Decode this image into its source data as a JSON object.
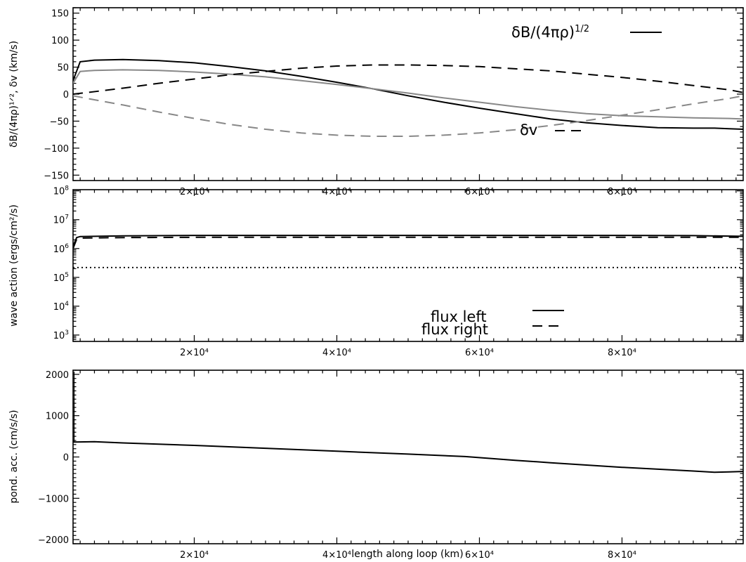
{
  "figure": {
    "xlabel": "length along loop (km)"
  },
  "chart_data": [
    {
      "type": "line",
      "ylabel": "δB/(4πρ)¹ᐟ², δv (km/s)",
      "xlim": [
        3000,
        97000
      ],
      "ylim": [
        -160,
        160
      ],
      "xticks": [
        20000,
        40000,
        60000,
        80000
      ],
      "xtick_labels": [
        "2×10⁴",
        "4×10⁴",
        "6×10⁴",
        "8×10⁴"
      ],
      "yticks": [
        -150,
        -100,
        -50,
        0,
        50,
        100,
        150
      ],
      "ytick_labels": [
        "−150",
        "−100",
        "−50",
        "0",
        "50",
        "100",
        "150"
      ],
      "legend": [
        {
          "label": "δB/(4πρ)¹ᐟ²",
          "style": "solid"
        },
        {
          "label": "δv",
          "style": "dashed"
        }
      ],
      "series": [
        {
          "color": "#000000",
          "dash": "solid",
          "x": [
            3000,
            4000,
            6000,
            10000,
            15000,
            20000,
            25000,
            30000,
            35000,
            40000,
            45000,
            50000,
            55000,
            60000,
            65000,
            70000,
            75000,
            80000,
            85000,
            90000,
            93000,
            95000,
            97000
          ],
          "y": [
            25,
            60,
            63,
            64,
            62,
            58,
            51,
            43,
            33,
            22,
            10,
            -3,
            -15,
            -26,
            -36,
            -46,
            -53,
            -58,
            -62,
            -63,
            -63,
            -64,
            -65
          ]
        },
        {
          "color": "#888888",
          "dash": "solid",
          "x": [
            3000,
            4000,
            6000,
            10000,
            15000,
            20000,
            25000,
            30000,
            35000,
            40000,
            45000,
            50000,
            55000,
            60000,
            65000,
            70000,
            75000,
            80000,
            85000,
            90000,
            95000,
            97000
          ],
          "y": [
            20,
            42,
            44,
            45,
            44,
            41,
            37,
            32,
            25,
            18,
            10,
            2,
            -7,
            -15,
            -23,
            -30,
            -36,
            -40,
            -42,
            -44,
            -45,
            -46
          ]
        },
        {
          "color": "#000000",
          "dash": "dashed",
          "x": [
            3000,
            5000,
            10000,
            15000,
            20000,
            25000,
            30000,
            35000,
            40000,
            45000,
            50000,
            55000,
            60000,
            65000,
            70000,
            75000,
            80000,
            85000,
            90000,
            95000,
            97000
          ],
          "y": [
            0,
            3,
            11,
            20,
            28,
            36,
            42,
            48,
            52,
            54,
            54,
            53,
            51,
            47,
            43,
            37,
            31,
            24,
            16,
            8,
            3
          ]
        },
        {
          "color": "#888888",
          "dash": "dashed",
          "x": [
            3000,
            5000,
            10000,
            15000,
            20000,
            25000,
            30000,
            35000,
            40000,
            45000,
            50000,
            55000,
            60000,
            65000,
            70000,
            75000,
            80000,
            85000,
            90000,
            95000,
            97000
          ],
          "y": [
            -3,
            -8,
            -20,
            -33,
            -45,
            -56,
            -65,
            -72,
            -76,
            -78,
            -78,
            -76,
            -72,
            -66,
            -58,
            -49,
            -39,
            -29,
            -18,
            -8,
            -3
          ]
        }
      ]
    },
    {
      "type": "line",
      "yscale": "log",
      "ylabel": "wave action (ergs/cm²/s)",
      "xlim": [
        3000,
        97000
      ],
      "ylim": [
        600,
        110000000
      ],
      "xticks": [
        20000,
        40000,
        60000,
        80000
      ],
      "xtick_labels": [
        "2×10⁴",
        "4×10⁴",
        "6×10⁴",
        "8×10⁴"
      ],
      "yticks": [
        1000,
        10000,
        100000,
        1000000,
        10000000,
        100000000
      ],
      "ytick_labels": [
        "10³",
        "10⁴",
        "10⁵",
        "10⁶",
        "10⁷",
        "10⁸"
      ],
      "legend": [
        {
          "label": "flux left",
          "style": "solid"
        },
        {
          "label": "flux right",
          "style": "dashed"
        }
      ],
      "series": [
        {
          "name": "flux left",
          "color": "#000000",
          "dash": "solid",
          "x": [
            3000,
            3500,
            4000,
            10000,
            20000,
            30000,
            40000,
            50000,
            60000,
            70000,
            80000,
            90000,
            97000
          ],
          "y": [
            1200000,
            2400000,
            2600000,
            2750000,
            2850000,
            2850000,
            2850000,
            2850000,
            2850000,
            2850000,
            2850000,
            2800000,
            2650000
          ]
        },
        {
          "name": "flux right",
          "color": "#000000",
          "dash": "dashed",
          "x": [
            3000,
            3500,
            4000,
            10000,
            20000,
            30000,
            40000,
            50000,
            60000,
            70000,
            80000,
            90000,
            97000
          ],
          "y": [
            1000000,
            2100000,
            2300000,
            2400000,
            2450000,
            2450000,
            2450000,
            2450000,
            2450000,
            2450000,
            2450000,
            2450000,
            2450000
          ]
        },
        {
          "color": "#000000",
          "dash": "dotted",
          "x": [
            3000,
            97000
          ],
          "y": [
            220000,
            220000
          ]
        }
      ]
    },
    {
      "type": "line",
      "ylabel": "pond. acc. (cm/s/s)",
      "xlabel": "length along loop (km)",
      "xlim": [
        3000,
        97000
      ],
      "ylim": [
        -2100,
        2100
      ],
      "xticks": [
        20000,
        40000,
        60000,
        80000
      ],
      "xtick_labels": [
        "2×10⁴",
        "4×10⁴",
        "6×10⁴",
        "8×10⁴"
      ],
      "yticks": [
        -2000,
        -1000,
        0,
        1000,
        2000
      ],
      "ytick_labels": [
        "−2000",
        "−1000",
        "0",
        "1000",
        "2000"
      ],
      "series": [
        {
          "color": "#000000",
          "dash": "solid",
          "x": [
            3000,
            6000,
            10000,
            20000,
            30000,
            40000,
            50000,
            58000,
            65000,
            70000,
            80000,
            90000,
            93000,
            95000,
            97000
          ],
          "y": [
            360,
            370,
            340,
            280,
            210,
            140,
            70,
            10,
            -80,
            -140,
            -250,
            -340,
            -370,
            -360,
            -350
          ]
        }
      ]
    }
  ]
}
